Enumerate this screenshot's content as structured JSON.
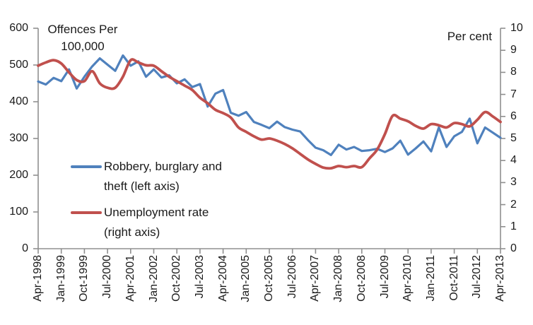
{
  "chart_data": {
    "type": "line",
    "grid": false,
    "background": "#ffffff",
    "legend_position": "inside-left",
    "left_axis": {
      "title_line1": "Offences Per",
      "title_line2": "100,000",
      "min": 0,
      "max": 600,
      "step": 100,
      "tick_labels": [
        "0",
        "100",
        "200",
        "300",
        "400",
        "500",
        "600"
      ]
    },
    "right_axis": {
      "title": "Per cent",
      "min": 0,
      "max": 10,
      "step": 1,
      "tick_labels": [
        "0",
        "1",
        "2",
        "3",
        "4",
        "5",
        "6",
        "7",
        "8",
        "9",
        "10"
      ]
    },
    "x_tick_labels": [
      "Apr-1998",
      "Jan-1999",
      "Oct-1999",
      "Jul-2000",
      "Apr-2001",
      "Jan-2002",
      "Oct-2002",
      "Jul-2003",
      "Apr-2004",
      "Jan-2005",
      "Oct-2005",
      "Jul-2006",
      "Apr-2007",
      "Jan-2008",
      "Oct-2008",
      "Jul-2009",
      "Apr-2010",
      "Jan-2011",
      "Oct-2011",
      "Jul-2012",
      "Apr-2013"
    ],
    "x_tick_every": 3,
    "x_categories": [
      "Apr-1998",
      "Jul-1998",
      "Oct-1998",
      "Jan-1999",
      "Apr-1999",
      "Jul-1999",
      "Oct-1999",
      "Jan-2000",
      "Apr-2000",
      "Jul-2000",
      "Oct-2000",
      "Jan-2001",
      "Apr-2001",
      "Jul-2001",
      "Oct-2001",
      "Jan-2002",
      "Apr-2002",
      "Jul-2002",
      "Oct-2002",
      "Jan-2003",
      "Apr-2003",
      "Jul-2003",
      "Oct-2003",
      "Jan-2004",
      "Apr-2004",
      "Jul-2004",
      "Oct-2004",
      "Jan-2005",
      "Apr-2005",
      "Jul-2005",
      "Oct-2005",
      "Jan-2006",
      "Apr-2006",
      "Jul-2006",
      "Oct-2006",
      "Jan-2007",
      "Apr-2007",
      "Jul-2007",
      "Oct-2007",
      "Jan-2008",
      "Apr-2008",
      "Jul-2008",
      "Oct-2008",
      "Jan-2009",
      "Apr-2009",
      "Jul-2009",
      "Oct-2009",
      "Jan-2010",
      "Apr-2010",
      "Jul-2010",
      "Oct-2010",
      "Jan-2011",
      "Apr-2011",
      "Jul-2011",
      "Oct-2011",
      "Jan-2012",
      "Apr-2012",
      "Jul-2012",
      "Oct-2012",
      "Jan-2013",
      "Apr-2013"
    ],
    "legend": [
      {
        "label": "Robbery, burglary and theft (left axis)",
        "color": "#4F81BD"
      },
      {
        "label": "Unemployment rate (right axis)",
        "color": "#C0504D"
      }
    ],
    "series": [
      {
        "name": "Robbery, burglary and theft",
        "axis": "left",
        "color": "#4F81BD",
        "style": "jagged",
        "values": [
          455,
          447,
          465,
          456,
          488,
          436,
          468,
          496,
          518,
          501,
          484,
          526,
          498,
          510,
          468,
          488,
          466,
          472,
          450,
          461,
          440,
          448,
          387,
          422,
          432,
          370,
          362,
          372,
          345,
          337,
          328,
          346,
          331,
          324,
          319,
          296,
          275,
          268,
          255,
          283,
          270,
          277,
          266,
          268,
          272,
          263,
          273,
          294,
          256,
          273,
          292,
          265,
          330,
          277,
          306,
          318,
          354,
          287,
          330,
          316,
          302
        ]
      },
      {
        "name": "Unemployment rate",
        "axis": "right",
        "color": "#C0504D",
        "style": "smooth",
        "values": [
          8.3,
          8.45,
          8.55,
          8.4,
          8.0,
          7.65,
          7.6,
          8.05,
          7.5,
          7.3,
          7.3,
          7.8,
          8.55,
          8.45,
          8.32,
          8.3,
          8.05,
          7.8,
          7.6,
          7.4,
          7.2,
          6.85,
          6.6,
          6.3,
          6.15,
          5.95,
          5.5,
          5.3,
          5.1,
          4.95,
          5.0,
          4.9,
          4.75,
          4.55,
          4.3,
          4.05,
          3.85,
          3.68,
          3.65,
          3.75,
          3.7,
          3.75,
          3.7,
          4.1,
          4.5,
          5.2,
          6.03,
          5.9,
          5.78,
          5.57,
          5.45,
          5.65,
          5.6,
          5.5,
          5.7,
          5.65,
          5.55,
          5.85,
          6.2,
          6.0,
          5.75
        ]
      }
    ]
  },
  "colors": {
    "axis": "#8f8f8f",
    "text": "#1a1a1a",
    "blue_series": "#4F81BD",
    "red_series": "#C0504D"
  }
}
